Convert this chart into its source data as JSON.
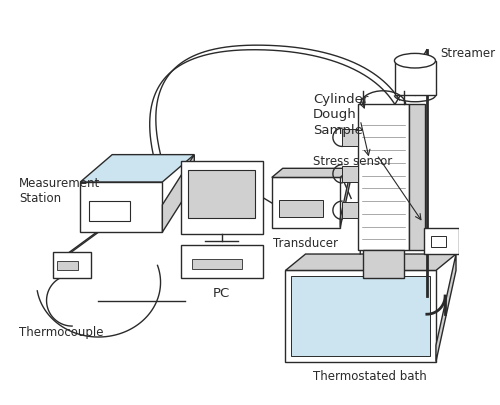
{
  "bg_color": "#ffffff",
  "line_color": "#2a2a2a",
  "fill_light_blue": "#cce4ef",
  "fill_gray": "#d0d0d0",
  "fill_white": "#ffffff",
  "labels": {
    "measurement_station": "Measurement\nStation",
    "thermocouple": "Thermocouple",
    "pc": "PC",
    "transducer": "Transducer",
    "cylinder": "Cylinder",
    "dough_sample": "Dough\nSample",
    "streamer": "Streamer",
    "stress_sensor": "Stress sensor",
    "thermostated_bath": "Thermostated bath"
  },
  "font_size": 8.5
}
